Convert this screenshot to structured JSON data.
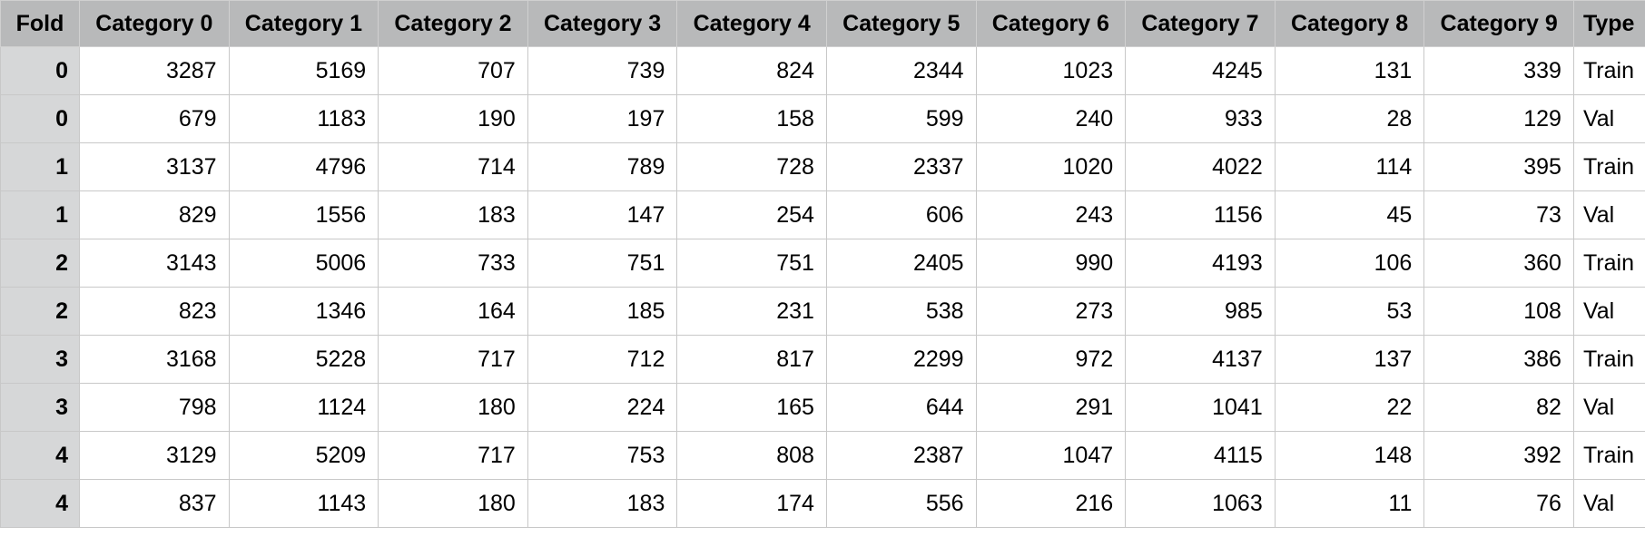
{
  "columns": [
    "Fold",
    "Category 0",
    "Category 1",
    "Category 2",
    "Category 3",
    "Category 4",
    "Category 5",
    "Category 6",
    "Category 7",
    "Category 8",
    "Category 9",
    "Type"
  ],
  "rows": [
    {
      "fold": "0",
      "values": [
        "3287",
        "5169",
        "707",
        "739",
        "824",
        "2344",
        "1023",
        "4245",
        "131",
        "339"
      ],
      "type": "Train"
    },
    {
      "fold": "0",
      "values": [
        "679",
        "1183",
        "190",
        "197",
        "158",
        "599",
        "240",
        "933",
        "28",
        "129"
      ],
      "type": "Val"
    },
    {
      "fold": "1",
      "values": [
        "3137",
        "4796",
        "714",
        "789",
        "728",
        "2337",
        "1020",
        "4022",
        "114",
        "395"
      ],
      "type": "Train"
    },
    {
      "fold": "1",
      "values": [
        "829",
        "1556",
        "183",
        "147",
        "254",
        "606",
        "243",
        "1156",
        "45",
        "73"
      ],
      "type": "Val"
    },
    {
      "fold": "2",
      "values": [
        "3143",
        "5006",
        "733",
        "751",
        "751",
        "2405",
        "990",
        "4193",
        "106",
        "360"
      ],
      "type": "Train"
    },
    {
      "fold": "2",
      "values": [
        "823",
        "1346",
        "164",
        "185",
        "231",
        "538",
        "273",
        "985",
        "53",
        "108"
      ],
      "type": "Val"
    },
    {
      "fold": "3",
      "values": [
        "3168",
        "5228",
        "717",
        "712",
        "817",
        "2299",
        "972",
        "4137",
        "137",
        "386"
      ],
      "type": "Train"
    },
    {
      "fold": "3",
      "values": [
        "798",
        "1124",
        "180",
        "224",
        "165",
        "644",
        "291",
        "1041",
        "22",
        "82"
      ],
      "type": "Val"
    },
    {
      "fold": "4",
      "values": [
        "3129",
        "5209",
        "717",
        "753",
        "808",
        "2387",
        "1047",
        "4115",
        "148",
        "392"
      ],
      "type": "Train"
    },
    {
      "fold": "4",
      "values": [
        "837",
        "1143",
        "180",
        "183",
        "174",
        "556",
        "216",
        "1063",
        "11",
        "76"
      ],
      "type": "Val"
    }
  ]
}
